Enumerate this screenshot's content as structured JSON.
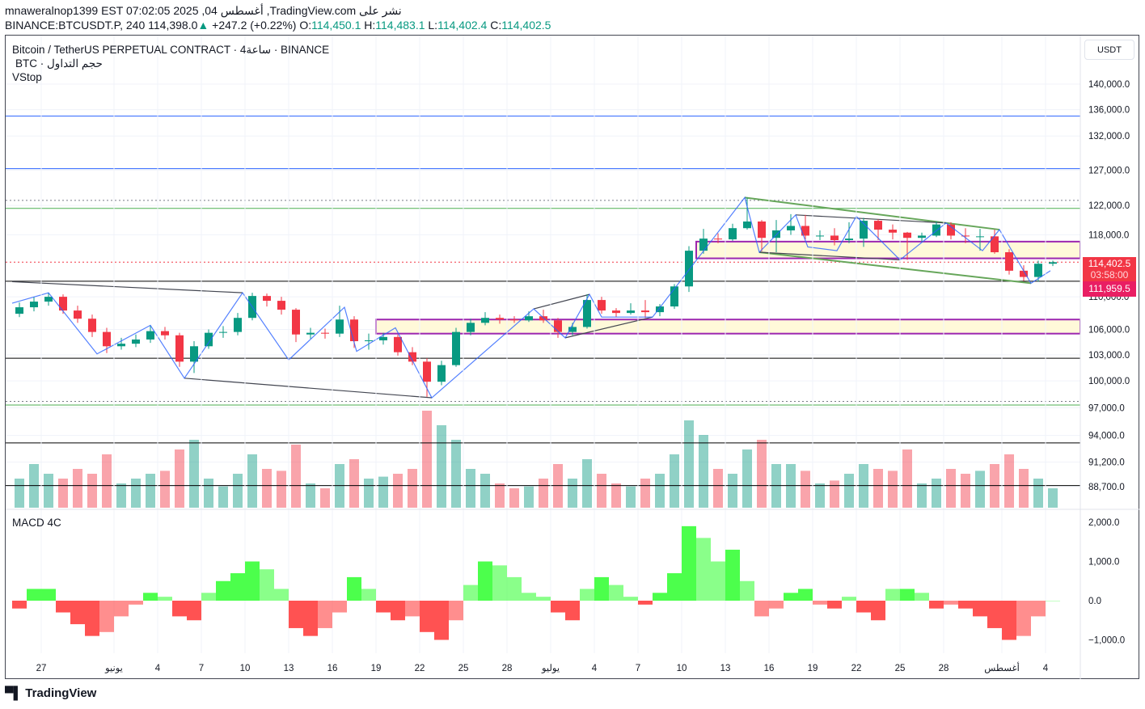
{
  "header": {
    "line1": "mnaweralnop1399 EST 07:02:05 2025 ,04 أغسطس ,TradingView.com نشر على",
    "symbol": "BINANCE:BTCUSDT.P, 240",
    "last": "114,398.0",
    "change": "+247.2 (+0.22%)",
    "o_label": "O:",
    "o": "114,450.1",
    "h_label": "H:",
    "h": "114,483.1",
    "l_label": "L:",
    "l": "114,402.4",
    "c_label": "C:",
    "c": "114,402.5"
  },
  "legend": {
    "title": "Bitcoin / TetherUS PERPETUAL CONTRACT · 4ساعة · BINANCE",
    "volume": "BTC · حجم التداول",
    "indicator": "VStop",
    "macd": "MACD 4C"
  },
  "currency_button": "USDT",
  "price_labels": {
    "current": "114,402.5",
    "countdown": "03:58:00",
    "level": "111,959.5"
  },
  "brand": "TradingView",
  "colors": {
    "up": "#089981",
    "down": "#f23645",
    "zone_border": "#9c27b0",
    "zone_fill": "#fff9d9",
    "zigzag": "#2962ff",
    "macd_up": "#4cff4c",
    "macd_down": "#ff5252"
  },
  "chart_data": {
    "type": "candlestick",
    "scale": "log",
    "ylim": [
      88700,
      140000
    ],
    "grid": true,
    "price_ticks": [
      {
        "value": 140000,
        "label": "140,000.0"
      },
      {
        "value": 136000,
        "label": "136,000.0"
      },
      {
        "value": 132000,
        "label": "132,000.0"
      },
      {
        "value": 127000,
        "label": "127,000.0"
      },
      {
        "value": 122000,
        "label": "122,000.0"
      },
      {
        "value": 118000,
        "label": "118,000.0"
      },
      {
        "value": 110000,
        "label": "110,000.0"
      },
      {
        "value": 106000,
        "label": "106,000.0"
      },
      {
        "value": 103000,
        "label": "103,000.0"
      },
      {
        "value": 100000,
        "label": "100,000.0"
      },
      {
        "value": 97000,
        "label": "97,000.0"
      },
      {
        "value": 94000,
        "label": "94,000.0"
      },
      {
        "value": 91200,
        "label": "91,200.0"
      },
      {
        "value": 88700,
        "label": "88,700.0"
      }
    ],
    "date_ticks": [
      {
        "date": "2025-05-27",
        "label": "27"
      },
      {
        "date": "2025-06-01",
        "label": "يونيو"
      },
      {
        "date": "2025-06-04",
        "label": "4"
      },
      {
        "date": "2025-06-07",
        "label": "7"
      },
      {
        "date": "2025-06-10",
        "label": "10"
      },
      {
        "date": "2025-06-13",
        "label": "13"
      },
      {
        "date": "2025-06-16",
        "label": "16"
      },
      {
        "date": "2025-06-19",
        "label": "19"
      },
      {
        "date": "2025-06-22",
        "label": "22"
      },
      {
        "date": "2025-06-25",
        "label": "25"
      },
      {
        "date": "2025-06-28",
        "label": "28"
      },
      {
        "date": "2025-07-01",
        "label": "يوليو"
      },
      {
        "date": "2025-07-04",
        "label": "4"
      },
      {
        "date": "2025-07-07",
        "label": "7"
      },
      {
        "date": "2025-07-10",
        "label": "10"
      },
      {
        "date": "2025-07-13",
        "label": "13"
      },
      {
        "date": "2025-07-16",
        "label": "16"
      },
      {
        "date": "2025-07-19",
        "label": "19"
      },
      {
        "date": "2025-07-22",
        "label": "22"
      },
      {
        "date": "2025-07-25",
        "label": "25"
      },
      {
        "date": "2025-07-28",
        "label": "28"
      },
      {
        "date": "2025-08-01",
        "label": "أغسطس"
      },
      {
        "date": "2025-08-04",
        "label": "4"
      }
    ],
    "candles": [
      [
        "2025-05-25",
        107900,
        109300,
        107500,
        108700
      ],
      [
        "2025-05-26",
        108700,
        110000,
        108200,
        109400
      ],
      [
        "2025-05-27",
        109400,
        110500,
        108900,
        110000
      ],
      [
        "2025-05-28",
        110000,
        110300,
        107900,
        108300
      ],
      [
        "2025-05-29",
        108300,
        108900,
        106800,
        107300
      ],
      [
        "2025-05-30",
        107300,
        107800,
        105100,
        105700
      ],
      [
        "2025-05-31",
        105700,
        106200,
        103200,
        104000
      ],
      [
        "2025-06-01",
        104000,
        105000,
        103600,
        104300
      ],
      [
        "2025-06-02",
        104300,
        105400,
        103900,
        104800
      ],
      [
        "2025-06-03",
        104800,
        106500,
        104400,
        105800
      ],
      [
        "2025-06-04",
        105800,
        106300,
        104800,
        105300
      ],
      [
        "2025-06-05",
        105300,
        105600,
        101600,
        102200
      ],
      [
        "2025-06-06",
        102200,
        104600,
        100900,
        104000
      ],
      [
        "2025-06-07",
        104000,
        106000,
        103700,
        105600
      ],
      [
        "2025-06-08",
        105600,
        106400,
        105000,
        105700
      ],
      [
        "2025-06-09",
        105700,
        108000,
        105300,
        107400
      ],
      [
        "2025-06-10",
        107400,
        110500,
        107100,
        110100
      ],
      [
        "2025-06-11",
        110100,
        110400,
        108800,
        109500
      ],
      [
        "2025-06-12",
        109500,
        110000,
        107800,
        108400
      ],
      [
        "2025-06-13",
        108400,
        108600,
        104500,
        105400
      ],
      [
        "2025-06-14",
        105400,
        106200,
        104900,
        105600
      ],
      [
        "2025-06-15",
        105600,
        106100,
        104900,
        105500
      ],
      [
        "2025-06-16",
        105500,
        108900,
        105100,
        107200
      ],
      [
        "2025-06-17",
        107200,
        107600,
        103800,
        104600
      ],
      [
        "2025-06-18",
        104600,
        105500,
        103600,
        104700
      ],
      [
        "2025-06-19",
        104700,
        105600,
        104200,
        105100
      ],
      [
        "2025-06-20",
        105100,
        105400,
        102900,
        103300
      ],
      [
        "2025-06-21",
        103300,
        103900,
        101800,
        102200
      ],
      [
        "2025-06-22",
        102200,
        102600,
        98200,
        99900
      ],
      [
        "2025-06-23",
        99900,
        102300,
        99500,
        101800
      ],
      [
        "2025-06-24",
        101800,
        106200,
        101600,
        105700
      ],
      [
        "2025-06-25",
        105700,
        107300,
        105300,
        106800
      ],
      [
        "2025-06-26",
        106800,
        108100,
        106500,
        107400
      ],
      [
        "2025-06-27",
        107400,
        107800,
        106700,
        107200
      ],
      [
        "2025-06-28",
        107200,
        107600,
        106800,
        107100
      ],
      [
        "2025-06-29",
        107100,
        108200,
        106900,
        107600
      ],
      [
        "2025-06-30",
        107600,
        108400,
        106800,
        107100
      ],
      [
        "2025-07-01",
        107100,
        107400,
        105000,
        105700
      ],
      [
        "2025-07-02",
        105700,
        106800,
        105300,
        106300
      ],
      [
        "2025-07-03",
        106300,
        110300,
        106100,
        109600
      ],
      [
        "2025-07-04",
        109600,
        110000,
        107900,
        108300
      ],
      [
        "2025-07-05",
        108300,
        108600,
        107500,
        108000
      ],
      [
        "2025-07-06",
        108000,
        109200,
        107800,
        108300
      ],
      [
        "2025-07-07",
        108300,
        109600,
        107400,
        108100
      ],
      [
        "2025-07-08",
        108100,
        109100,
        107600,
        108800
      ],
      [
        "2025-07-09",
        108800,
        111600,
        108500,
        111300
      ],
      [
        "2025-07-10",
        111300,
        116500,
        110600,
        115900
      ],
      [
        "2025-07-11",
        115900,
        118800,
        115500,
        117500
      ],
      [
        "2025-07-12",
        117500,
        118200,
        116900,
        117400
      ],
      [
        "2025-07-13",
        117400,
        119500,
        117200,
        118900
      ],
      [
        "2025-07-14",
        118900,
        123100,
        118700,
        119800
      ],
      [
        "2025-07-15",
        119800,
        120000,
        115800,
        117600
      ],
      [
        "2025-07-16",
        117600,
        120000,
        115700,
        118600
      ],
      [
        "2025-07-17",
        118600,
        120800,
        118000,
        119200
      ],
      [
        "2025-07-18",
        119200,
        120700,
        117400,
        117900
      ],
      [
        "2025-07-19",
        117900,
        118600,
        117300,
        117900
      ],
      [
        "2025-07-20",
        117900,
        118900,
        116600,
        117300
      ],
      [
        "2025-07-21",
        117300,
        119700,
        116900,
        117500
      ],
      [
        "2025-07-22",
        117500,
        120300,
        116400,
        119900
      ],
      [
        "2025-07-23",
        119900,
        120100,
        117300,
        118700
      ],
      [
        "2025-07-24",
        118700,
        119400,
        117400,
        118300
      ],
      [
        "2025-07-25",
        118300,
        118400,
        114700,
        117600
      ],
      [
        "2025-07-26",
        117600,
        118300,
        117100,
        117900
      ],
      [
        "2025-07-27",
        117900,
        119800,
        117700,
        119400
      ],
      [
        "2025-07-28",
        119400,
        119700,
        117400,
        117900
      ],
      [
        "2025-07-29",
        117900,
        118900,
        116900,
        117800
      ],
      [
        "2025-07-30",
        117800,
        118800,
        115900,
        117800
      ],
      [
        "2025-07-31",
        117800,
        118700,
        115500,
        115700
      ],
      [
        "2025-08-01",
        115700,
        116100,
        112800,
        113300
      ],
      [
        "2025-08-02",
        113300,
        114000,
        112000,
        112500
      ],
      [
        "2025-08-03",
        112500,
        114600,
        111900,
        114200
      ],
      [
        "2025-08-04",
        114200,
        114600,
        113900,
        114400
      ]
    ],
    "volume": [
      30,
      45,
      35,
      30,
      40,
      35,
      55,
      25,
      30,
      35,
      38,
      60,
      70,
      30,
      22,
      35,
      55,
      40,
      38,
      65,
      25,
      20,
      45,
      50,
      30,
      32,
      35,
      40,
      100,
      85,
      70,
      40,
      35,
      25,
      20,
      22,
      30,
      45,
      30,
      50,
      35,
      25,
      22,
      30,
      35,
      55,
      90,
      75,
      40,
      35,
      60,
      70,
      45,
      45,
      38,
      25,
      28,
      35,
      45,
      40,
      38,
      60,
      25,
      30,
      40,
      35,
      38,
      45,
      55,
      40,
      30,
      20
    ],
    "macd_ticks": [
      {
        "value": 2000,
        "label": "2,000.0"
      },
      {
        "value": 1000,
        "label": "1,000.0"
      },
      {
        "value": 0,
        "label": "0.0"
      },
      {
        "value": -1000,
        "label": "−1,000.0"
      }
    ],
    "macd_hist": [
      -200,
      300,
      300,
      -300,
      -600,
      -900,
      -800,
      -400,
      -100,
      200,
      100,
      -400,
      -500,
      200,
      500,
      700,
      1000,
      800,
      300,
      -700,
      -900,
      -700,
      -300,
      600,
      300,
      -300,
      -500,
      -400,
      -800,
      -1000,
      -500,
      400,
      1000,
      900,
      600,
      200,
      100,
      -300,
      -500,
      300,
      600,
      400,
      100,
      -100,
      200,
      700,
      1900,
      1600,
      1000,
      1300,
      500,
      -400,
      -200,
      200,
      300,
      -100,
      -200,
      100,
      -300,
      -500,
      300,
      300,
      200,
      -200,
      -100,
      -200,
      -400,
      -700,
      -1000,
      -900,
      -400,
      0
    ],
    "horizontal_lines": [
      {
        "price": 135000,
        "color": "#2962ff",
        "style": "solid"
      },
      {
        "price": 127200,
        "color": "#2962ff",
        "style": "solid"
      },
      {
        "price": 122700,
        "color": "#787b86",
        "style": "dotted"
      },
      {
        "price": 121600,
        "color": "#4caf50",
        "style": "solid"
      },
      {
        "price": 114402.5,
        "color": "#f23645",
        "style": "dotted"
      },
      {
        "price": 111959.5,
        "color": "#000000",
        "style": "solid"
      },
      {
        "price": 102600,
        "color": "#000000",
        "style": "solid"
      },
      {
        "price": 97700,
        "color": "#787b86",
        "style": "dotted"
      },
      {
        "price": 97300,
        "color": "#4caf50",
        "style": "solid"
      },
      {
        "price": 93200,
        "color": "#000000",
        "style": "solid"
      },
      {
        "price": 88800,
        "color": "#000000",
        "style": "solid"
      }
    ],
    "zones": [
      {
        "from": "2025-07-11",
        "top": 117100,
        "bottom": 114900
      },
      {
        "from": "2025-06-19",
        "top": 107200,
        "bottom": 105500
      }
    ],
    "trendlines": [
      {
        "color": "#434651",
        "points": [
          [
            "2025-05-25T00:00",
            111900
          ],
          [
            "2025-06-09T20:00",
            110500
          ]
        ]
      },
      {
        "color": "#434651",
        "points": [
          [
            "2025-06-05T20:00",
            100300
          ],
          [
            "2025-06-22T20:00",
            98100
          ]
        ]
      },
      {
        "color": "#434651",
        "points": [
          [
            "2025-07-02T00:00",
            105000
          ],
          [
            "2025-07-08T00:00",
            107500
          ]
        ]
      },
      {
        "color": "#434651",
        "points": [
          [
            "2025-06-29T20:00",
            108500
          ],
          [
            "2025-07-03T16:00",
            110300
          ]
        ]
      },
      {
        "color": "#66a65a",
        "points": [
          [
            "2025-07-14T08:00",
            123100
          ],
          [
            "2025-07-31T20:00",
            118700
          ]
        ]
      },
      {
        "color": "#66a65a",
        "points": [
          [
            "2025-07-15T08:00",
            115700
          ],
          [
            "2025-08-03T00:00",
            111700
          ]
        ]
      },
      {
        "color": "#434651",
        "points": [
          [
            "2025-07-17T20:00",
            120700
          ],
          [
            "2025-07-28T04:00",
            119600
          ]
        ]
      },
      {
        "color": "#434651",
        "points": [
          [
            "2025-07-15T08:00",
            115700
          ],
          [
            "2025-07-25T00:00",
            114700
          ]
        ]
      }
    ],
    "zigzag": [
      [
        "2025-05-25T00:00",
        109200
      ],
      [
        "2025-05-27T12:00",
        110500
      ],
      [
        "2025-05-30T20:00",
        103100
      ],
      [
        "2025-06-03T12:00",
        106500
      ],
      [
        "2025-06-05T20:00",
        100300
      ],
      [
        "2025-06-09T20:00",
        110500
      ],
      [
        "2025-06-13T00:00",
        102400
      ],
      [
        "2025-06-16T20:00",
        108700
      ],
      [
        "2025-06-17T16:00",
        103400
      ],
      [
        "2025-06-20T08:00",
        106200
      ],
      [
        "2025-06-22T20:00",
        98100
      ],
      [
        "2025-06-29T20:00",
        108500
      ],
      [
        "2025-07-02T00:00",
        105000
      ],
      [
        "2025-07-03T16:00",
        110300
      ],
      [
        "2025-07-04T12:00",
        107500
      ],
      [
        "2025-07-08T00:00",
        107500
      ],
      [
        "2025-07-14T08:00",
        123100
      ],
      [
        "2025-07-15T08:00",
        115700
      ],
      [
        "2025-07-17T20:00",
        120700
      ],
      [
        "2025-07-18T16:00",
        116400
      ],
      [
        "2025-07-20T16:00",
        115900
      ],
      [
        "2025-07-22T00:00",
        120500
      ],
      [
        "2025-07-25T00:00",
        114700
      ],
      [
        "2025-07-28T04:00",
        119600
      ],
      [
        "2025-07-30T16:00",
        115900
      ],
      [
        "2025-07-31T20:00",
        118700
      ],
      [
        "2025-08-03T00:00",
        111700
      ],
      [
        "2025-08-04T08:00",
        113300
      ]
    ]
  }
}
